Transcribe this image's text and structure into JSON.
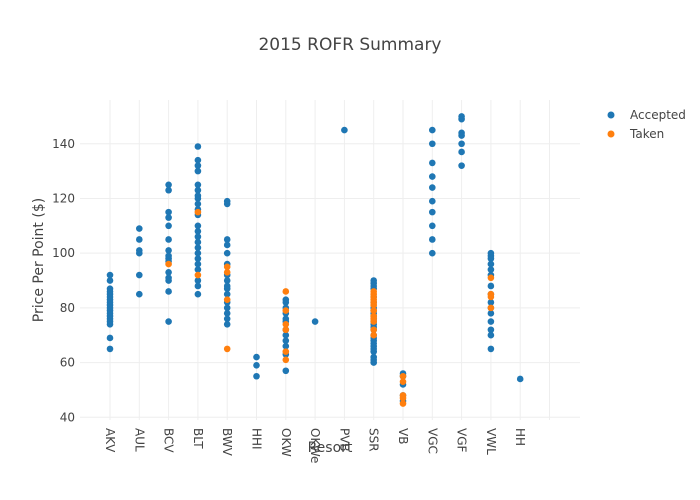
{
  "chart_data": {
    "type": "scatter",
    "title": "2015 ROFR Summary",
    "xlabel": "Resort",
    "ylabel": "Price Per Point ($)",
    "categories": [
      "AKV",
      "AUL",
      "BCV",
      "BLT",
      "BWV",
      "HHI",
      "OKW",
      "OKWe",
      "PVB",
      "SSR",
      "VB",
      "VGC",
      "VGF",
      "VWL",
      "HH"
    ],
    "ylim": [
      39,
      156
    ],
    "yticks": [
      40,
      60,
      80,
      100,
      120,
      140
    ],
    "grid": true,
    "legend_position": "top-right",
    "colors": {
      "Accepted": "#1f77b4",
      "Taken": "#ff7f0e"
    },
    "series": [
      {
        "name": "Accepted",
        "points": [
          [
            "AKV",
            92
          ],
          [
            "AKV",
            90
          ],
          [
            "AKV",
            87
          ],
          [
            "AKV",
            86
          ],
          [
            "AKV",
            85
          ],
          [
            "AKV",
            84
          ],
          [
            "AKV",
            83
          ],
          [
            "AKV",
            82
          ],
          [
            "AKV",
            81
          ],
          [
            "AKV",
            80
          ],
          [
            "AKV",
            79
          ],
          [
            "AKV",
            78
          ],
          [
            "AKV",
            77
          ],
          [
            "AKV",
            76
          ],
          [
            "AKV",
            75
          ],
          [
            "AKV",
            74
          ],
          [
            "AKV",
            69
          ],
          [
            "AKV",
            65
          ],
          [
            "AUL",
            109
          ],
          [
            "AUL",
            105
          ],
          [
            "AUL",
            101
          ],
          [
            "AUL",
            100
          ],
          [
            "AUL",
            92
          ],
          [
            "AUL",
            85
          ],
          [
            "BCV",
            125
          ],
          [
            "BCV",
            123
          ],
          [
            "BCV",
            115
          ],
          [
            "BCV",
            113
          ],
          [
            "BCV",
            110
          ],
          [
            "BCV",
            105
          ],
          [
            "BCV",
            101
          ],
          [
            "BCV",
            99
          ],
          [
            "BCV",
            98
          ],
          [
            "BCV",
            97
          ],
          [
            "BCV",
            93
          ],
          [
            "BCV",
            91
          ],
          [
            "BCV",
            90
          ],
          [
            "BCV",
            86
          ],
          [
            "BCV",
            75
          ],
          [
            "BLT",
            139
          ],
          [
            "BLT",
            134
          ],
          [
            "BLT",
            132
          ],
          [
            "BLT",
            130
          ],
          [
            "BLT",
            125
          ],
          [
            "BLT",
            123
          ],
          [
            "BLT",
            121
          ],
          [
            "BLT",
            120
          ],
          [
            "BLT",
            118
          ],
          [
            "BLT",
            116
          ],
          [
            "BLT",
            114
          ],
          [
            "BLT",
            110
          ],
          [
            "BLT",
            108
          ],
          [
            "BLT",
            106
          ],
          [
            "BLT",
            104
          ],
          [
            "BLT",
            102
          ],
          [
            "BLT",
            100
          ],
          [
            "BLT",
            98
          ],
          [
            "BLT",
            96
          ],
          [
            "BLT",
            94
          ],
          [
            "BLT",
            90
          ],
          [
            "BLT",
            88
          ],
          [
            "BLT",
            85
          ],
          [
            "BWV",
            119
          ],
          [
            "BWV",
            118
          ],
          [
            "BWV",
            105
          ],
          [
            "BWV",
            103
          ],
          [
            "BWV",
            100
          ],
          [
            "BWV",
            96
          ],
          [
            "BWV",
            92
          ],
          [
            "BWV",
            90
          ],
          [
            "BWV",
            88
          ],
          [
            "BWV",
            87
          ],
          [
            "BWV",
            85
          ],
          [
            "BWV",
            82
          ],
          [
            "BWV",
            80
          ],
          [
            "BWV",
            78
          ],
          [
            "BWV",
            76
          ],
          [
            "BWV",
            74
          ],
          [
            "HHI",
            62
          ],
          [
            "HHI",
            59
          ],
          [
            "HHI",
            55
          ],
          [
            "OKW",
            83
          ],
          [
            "OKW",
            82
          ],
          [
            "OKW",
            80
          ],
          [
            "OKW",
            78
          ],
          [
            "OKW",
            76
          ],
          [
            "OKW",
            75
          ],
          [
            "OKW",
            72
          ],
          [
            "OKW",
            70
          ],
          [
            "OKW",
            68
          ],
          [
            "OKW",
            66
          ],
          [
            "OKW",
            63
          ],
          [
            "OKW",
            57
          ],
          [
            "OKWe",
            75
          ],
          [
            "PVB",
            145
          ],
          [
            "SSR",
            90
          ],
          [
            "SSR",
            89
          ],
          [
            "SSR",
            88
          ],
          [
            "SSR",
            87
          ],
          [
            "SSR",
            84
          ],
          [
            "SSR",
            82
          ],
          [
            "SSR",
            80
          ],
          [
            "SSR",
            79
          ],
          [
            "SSR",
            78
          ],
          [
            "SSR",
            77
          ],
          [
            "SSR",
            76
          ],
          [
            "SSR",
            75
          ],
          [
            "SSR",
            74
          ],
          [
            "SSR",
            73
          ],
          [
            "SSR",
            72
          ],
          [
            "SSR",
            70
          ],
          [
            "SSR",
            69
          ],
          [
            "SSR",
            68
          ],
          [
            "SSR",
            67
          ],
          [
            "SSR",
            66
          ],
          [
            "SSR",
            65
          ],
          [
            "SSR",
            64
          ],
          [
            "SSR",
            62
          ],
          [
            "SSR",
            61
          ],
          [
            "SSR",
            60
          ],
          [
            "VB",
            56
          ],
          [
            "VB",
            55
          ],
          [
            "VB",
            52
          ],
          [
            "VB",
            48
          ],
          [
            "VB",
            46
          ],
          [
            "VGC",
            145
          ],
          [
            "VGC",
            140
          ],
          [
            "VGC",
            133
          ],
          [
            "VGC",
            128
          ],
          [
            "VGC",
            124
          ],
          [
            "VGC",
            119
          ],
          [
            "VGC",
            115
          ],
          [
            "VGC",
            110
          ],
          [
            "VGC",
            105
          ],
          [
            "VGC",
            100
          ],
          [
            "VGF",
            150
          ],
          [
            "VGF",
            149
          ],
          [
            "VGF",
            144
          ],
          [
            "VGF",
            143
          ],
          [
            "VGF",
            140
          ],
          [
            "VGF",
            137
          ],
          [
            "VGF",
            132
          ],
          [
            "VWL",
            100
          ],
          [
            "VWL",
            99
          ],
          [
            "VWL",
            98
          ],
          [
            "VWL",
            96
          ],
          [
            "VWL",
            94
          ],
          [
            "VWL",
            92
          ],
          [
            "VWL",
            88
          ],
          [
            "VWL",
            85
          ],
          [
            "VWL",
            82
          ],
          [
            "VWL",
            80
          ],
          [
            "VWL",
            78
          ],
          [
            "VWL",
            75
          ],
          [
            "VWL",
            72
          ],
          [
            "VWL",
            70
          ],
          [
            "VWL",
            65
          ],
          [
            "HH",
            54
          ]
        ]
      },
      {
        "name": "Taken",
        "points": [
          [
            "BCV",
            96
          ],
          [
            "BLT",
            115
          ],
          [
            "BLT",
            92
          ],
          [
            "BWV",
            95
          ],
          [
            "BWV",
            93
          ],
          [
            "BWV",
            83
          ],
          [
            "BWV",
            65
          ],
          [
            "OKW",
            86
          ],
          [
            "OKW",
            79
          ],
          [
            "OKW",
            74
          ],
          [
            "OKW",
            72
          ],
          [
            "OKW",
            64
          ],
          [
            "OKW",
            61
          ],
          [
            "SSR",
            86
          ],
          [
            "SSR",
            85
          ],
          [
            "SSR",
            84
          ],
          [
            "SSR",
            83
          ],
          [
            "SSR",
            82
          ],
          [
            "SSR",
            81
          ],
          [
            "SSR",
            79
          ],
          [
            "SSR",
            77
          ],
          [
            "SSR",
            76
          ],
          [
            "SSR",
            75
          ],
          [
            "SSR",
            72
          ],
          [
            "SSR",
            70
          ],
          [
            "VB",
            55
          ],
          [
            "VB",
            53
          ],
          [
            "VB",
            48
          ],
          [
            "VB",
            47
          ],
          [
            "VB",
            45
          ],
          [
            "VWL",
            91
          ],
          [
            "VWL",
            85
          ],
          [
            "VWL",
            84
          ],
          [
            "VWL",
            80
          ]
        ]
      }
    ]
  }
}
